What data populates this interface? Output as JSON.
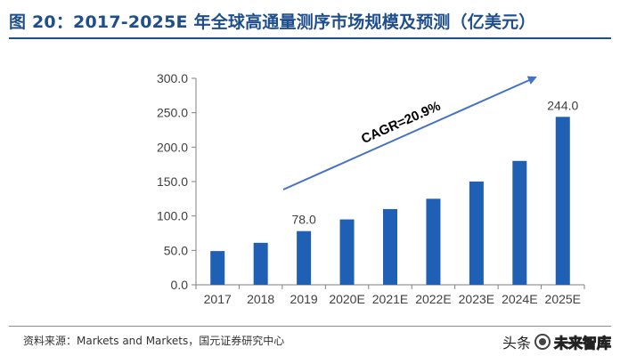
{
  "title": "图 20：2017-2025E 年全球高通量测序市场规模及预测（亿美元）",
  "source": "资料来源：Markets and Markets，国元证券研究中心",
  "watermark": {
    "prefix": "头条",
    "brand": "未来智库",
    "icon": "wechat-like-icon"
  },
  "colors": {
    "title": "#1f4e8c",
    "bar": "#1f5fb4",
    "arrow": "#4472c4",
    "axis": "#808080",
    "text": "#404040"
  },
  "chart_data": {
    "type": "bar",
    "categories": [
      "2017",
      "2018",
      "2019",
      "2020E",
      "2021E",
      "2022E",
      "2023E",
      "2024E",
      "2025E"
    ],
    "values": [
      49,
      61,
      78,
      95,
      110,
      125,
      150,
      180,
      244
    ],
    "data_labels": [
      {
        "category": "2019",
        "text": "78.0"
      },
      {
        "category": "2025E",
        "text": "244.0"
      }
    ],
    "yticks": [
      "0.0",
      "50.0",
      "100.0",
      "150.0",
      "200.0",
      "250.0",
      "300.0"
    ],
    "ylim": [
      0,
      300
    ],
    "annotation": {
      "text": "CAGR=20.9%",
      "shape": "upward trend arrow"
    },
    "grid": false,
    "legend": false,
    "title": "",
    "xlabel": "",
    "ylabel": ""
  }
}
